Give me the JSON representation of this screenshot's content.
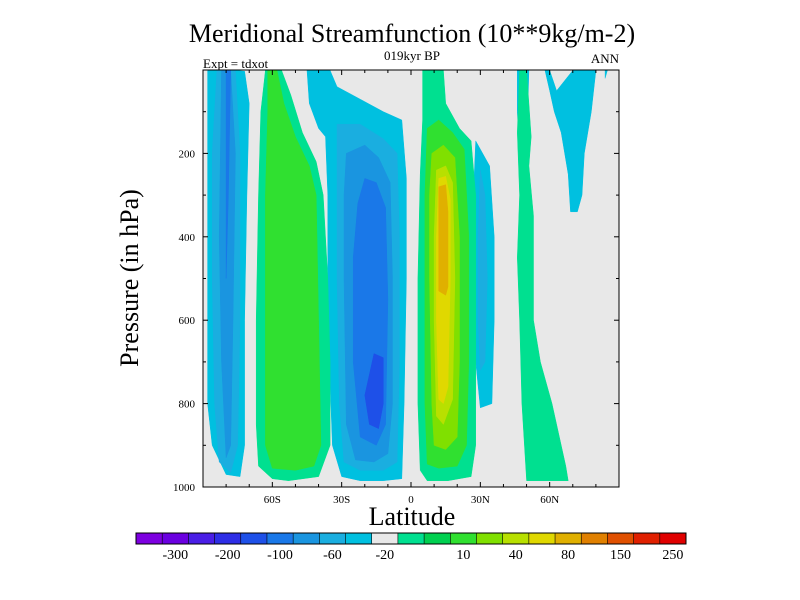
{
  "chart_data": {
    "type": "heatmap",
    "title": "Meridional Streamfunction (10**9kg/m-2)",
    "subtitle_center": "019kyr BP",
    "subtitle_left": "Expt = tdxot",
    "subtitle_right": "ANN",
    "xlabel": "Latitude",
    "ylabel": "Pressure (in hPa)",
    "xlim": [
      -90,
      90
    ],
    "ylim": [
      1000,
      0
    ],
    "y_ticks": [
      200,
      400,
      600,
      800,
      1000
    ],
    "x_ticks": [
      {
        "value": -60,
        "label": "60S"
      },
      {
        "value": -30,
        "label": "30S"
      },
      {
        "value": 0,
        "label": "0"
      },
      {
        "value": 30,
        "label": "30N"
      },
      {
        "value": 60,
        "label": "60N"
      }
    ],
    "colorbar": {
      "colors": [
        "#7d00e0",
        "#6a00e0",
        "#4a1ee6",
        "#2e2ee6",
        "#1e50e8",
        "#1a78e8",
        "#1a95e0",
        "#1aaee0",
        "#00c0e0",
        "#e8e8e8",
        "#00e090",
        "#00d050",
        "#30e030",
        "#80e000",
        "#b8e000",
        "#e0d800",
        "#e0b000",
        "#e08000",
        "#e05000",
        "#e02000",
        "#e00000"
      ],
      "labels": [
        "-300",
        "-200",
        "-100",
        "-60",
        "-20",
        "10",
        "40",
        "80",
        "150",
        "250"
      ]
    },
    "fields": [
      {
        "level": -20,
        "color": "#00c0e0",
        "polys": [
          [
            [
              -88,
              2
            ],
            [
              -84,
              1
            ],
            [
              -76,
              1
            ],
            [
              -72,
              3
            ],
            [
              -70,
              80
            ],
            [
              -71,
              300
            ],
            [
              -72,
              600
            ],
            [
              -72,
              900
            ],
            [
              -74,
              975
            ],
            [
              -80,
              970
            ],
            [
              -86,
              900
            ],
            [
              -88,
              800
            ],
            [
              -88,
              400
            ],
            [
              -88,
              200
            ]
          ],
          [
            [
              -45,
              1
            ],
            [
              -35,
              1
            ],
            [
              -32,
              40
            ],
            [
              -22,
              70
            ],
            [
              -12,
              100
            ],
            [
              -4,
              120
            ],
            [
              -2,
              260
            ],
            [
              -2,
              500
            ],
            [
              -3,
              800
            ],
            [
              -4,
              980
            ],
            [
              -12,
              985
            ],
            [
              -22,
              985
            ],
            [
              -30,
              975
            ],
            [
              -34,
              900
            ],
            [
              -36,
              600
            ],
            [
              -36,
              300
            ],
            [
              -37,
              160
            ],
            [
              -40,
              140
            ],
            [
              -44,
              80
            ]
          ],
          [
            [
              28,
              170
            ],
            [
              34,
              230
            ],
            [
              36,
              400
            ],
            [
              36,
              600
            ],
            [
              35,
              800
            ],
            [
              30,
              810
            ],
            [
              28,
              700
            ],
            [
              27,
              500
            ],
            [
              27,
              300
            ]
          ],
          [
            [
              46,
              1
            ],
            [
              51,
              1
            ],
            [
              50,
              200
            ],
            [
              49,
              250
            ],
            [
              47,
              200
            ],
            [
              46,
              100
            ]
          ],
          [
            [
              58,
              1
            ],
            [
              60,
              1
            ],
            [
              63,
              50
            ],
            [
              70,
              1
            ],
            [
              80,
              1
            ],
            [
              78,
              100
            ],
            [
              75,
              200
            ],
            [
              74,
              300
            ],
            [
              72,
              340
            ],
            [
              69,
              340
            ],
            [
              68,
              250
            ],
            [
              65,
              150
            ],
            [
              62,
              100
            ],
            [
              60,
              50
            ]
          ],
          [
            [
              84,
              1
            ],
            [
              85,
              1
            ],
            [
              84,
              20
            ]
          ]
        ]
      },
      {
        "level": -30,
        "color": "#1aaee0",
        "polys": [
          [
            [
              -84,
              2
            ],
            [
              -76,
              2
            ],
            [
              -74,
              200
            ],
            [
              -74,
              600
            ],
            [
              -75,
              900
            ],
            [
              -78,
              965
            ],
            [
              -83,
              940
            ],
            [
              -85,
              800
            ],
            [
              -86,
              500
            ],
            [
              -86,
              200
            ]
          ],
          [
            [
              -32,
              130
            ],
            [
              -22,
              130
            ],
            [
              -12,
              165
            ],
            [
              -6,
              200
            ],
            [
              -5,
              400
            ],
            [
              -5,
              700
            ],
            [
              -6,
              940
            ],
            [
              -12,
              960
            ],
            [
              -22,
              960
            ],
            [
              -29,
              940
            ],
            [
              -31,
              800
            ],
            [
              -32,
              500
            ],
            [
              -32,
              250
            ]
          ],
          [
            [
              30,
              240
            ],
            [
              32,
              300
            ],
            [
              33,
              500
            ],
            [
              32,
              700
            ],
            [
              30,
              720
            ],
            [
              29,
              600
            ],
            [
              29,
              400
            ]
          ]
        ]
      },
      {
        "level": -40,
        "color": "#1a95e0",
        "polys": [
          [
            [
              -82,
              2
            ],
            [
              -78,
              2
            ],
            [
              -76,
              200
            ],
            [
              -77,
              600
            ],
            [
              -78,
              900
            ],
            [
              -80,
              930
            ],
            [
              -82,
              700
            ],
            [
              -83,
              400
            ]
          ],
          [
            [
              -28,
              200
            ],
            [
              -20,
              180
            ],
            [
              -14,
              210
            ],
            [
              -9,
              270
            ],
            [
              -8,
              500
            ],
            [
              -8,
              800
            ],
            [
              -10,
              920
            ],
            [
              -16,
              940
            ],
            [
              -24,
              935
            ],
            [
              -28,
              850
            ],
            [
              -29,
              500
            ],
            [
              -29,
              300
            ]
          ]
        ]
      },
      {
        "level": -60,
        "color": "#1a78e8",
        "polys": [
          [
            [
              -80,
              2
            ],
            [
              -78,
              2
            ],
            [
              -79,
              300
            ],
            [
              -80,
              500
            ]
          ],
          [
            [
              -20,
              260
            ],
            [
              -15,
              270
            ],
            [
              -11,
              330
            ],
            [
              -10,
              550
            ],
            [
              -11,
              850
            ],
            [
              -15,
              900
            ],
            [
              -22,
              880
            ],
            [
              -25,
              700
            ],
            [
              -25,
              450
            ],
            [
              -23,
              320
            ]
          ]
        ]
      },
      {
        "level": -80,
        "color": "#1e50e8",
        "polys": [
          [
            [
              -16,
              680
            ],
            [
              -12,
              690
            ],
            [
              -12,
              800
            ],
            [
              -14,
              860
            ],
            [
              -18,
              850
            ],
            [
              -20,
              780
            ]
          ]
        ]
      },
      {
        "level": 10,
        "color": "#00e090",
        "polys": [
          [
            [
              -63,
              1
            ],
            [
              -56,
              1
            ],
            [
              -52,
              60
            ],
            [
              -47,
              150
            ],
            [
              -41,
              220
            ],
            [
              -38,
              300
            ],
            [
              -36,
              500
            ],
            [
              -35,
              700
            ],
            [
              -35,
              900
            ],
            [
              -40,
              975
            ],
            [
              -53,
              985
            ],
            [
              -60,
              980
            ],
            [
              -66,
              950
            ],
            [
              -67,
              850
            ],
            [
              -67,
              600
            ],
            [
              -66,
              300
            ],
            [
              -65,
              100
            ]
          ],
          [
            [
              5,
              1
            ],
            [
              14,
              1
            ],
            [
              15,
              80
            ],
            [
              21,
              140
            ],
            [
              26,
              170
            ],
            [
              28,
              300
            ],
            [
              28,
              600
            ],
            [
              28,
              900
            ],
            [
              26,
              975
            ],
            [
              16,
              985
            ],
            [
              7,
              985
            ],
            [
              4,
              960
            ],
            [
              3,
              800
            ],
            [
              3,
              500
            ],
            [
              4,
              250
            ],
            [
              5,
              120
            ]
          ],
          [
            [
              47,
              1
            ],
            [
              50,
              1
            ],
            [
              52,
              160
            ],
            [
              51,
              230
            ],
            [
              53,
              350
            ],
            [
              53,
              600
            ],
            [
              56,
              700
            ],
            [
              61,
              800
            ],
            [
              67,
              950
            ],
            [
              68,
              985
            ],
            [
              50,
              985
            ],
            [
              48,
              800
            ],
            [
              47,
              600
            ],
            [
              46,
              450
            ],
            [
              47,
              300
            ],
            [
              46,
              150
            ]
          ]
        ]
      },
      {
        "level": 30,
        "color": "#30e030",
        "polys": [
          [
            [
              -62,
              1
            ],
            [
              -58,
              1
            ],
            [
              -55,
              80
            ],
            [
              -50,
              160
            ],
            [
              -44,
              230
            ],
            [
              -41,
              300
            ],
            [
              -40,
              600
            ],
            [
              -39,
              900
            ],
            [
              -42,
              950
            ],
            [
              -50,
              960
            ],
            [
              -60,
              955
            ],
            [
              -63,
              900
            ],
            [
              -63,
              600
            ],
            [
              -63,
              300
            ],
            [
              -62,
              100
            ]
          ],
          [
            [
              7,
              140
            ],
            [
              12,
              120
            ],
            [
              18,
              150
            ],
            [
              23,
              190
            ],
            [
              25,
              400
            ],
            [
              25,
              700
            ],
            [
              24,
              900
            ],
            [
              20,
              950
            ],
            [
              12,
              955
            ],
            [
              7,
              945
            ],
            [
              6,
              800
            ],
            [
              6,
              500
            ],
            [
              6,
              300
            ]
          ]
        ]
      },
      {
        "level": 40,
        "color": "#80e000",
        "polys": [
          [
            [
              9,
              200
            ],
            [
              14,
              180
            ],
            [
              19,
              210
            ],
            [
              21,
              400
            ],
            [
              21,
              700
            ],
            [
              20,
              880
            ],
            [
              15,
              910
            ],
            [
              10,
              900
            ],
            [
              9,
              800
            ],
            [
              8,
              500
            ],
            [
              8,
              300
            ]
          ]
        ]
      },
      {
        "level": 60,
        "color": "#b8e000",
        "polys": [
          [
            [
              11,
              240
            ],
            [
              15,
              230
            ],
            [
              18,
              270
            ],
            [
              19,
              500
            ],
            [
              18,
              790
            ],
            [
              14,
              850
            ],
            [
              11,
              830
            ],
            [
              10,
              600
            ],
            [
              10,
              400
            ]
          ]
        ]
      },
      {
        "level": 80,
        "color": "#e0d800",
        "polys": [
          [
            [
              12,
              260
            ],
            [
              15,
              255
            ],
            [
              17,
              310
            ],
            [
              17,
              500
            ],
            [
              16,
              760
            ],
            [
              14,
              800
            ],
            [
              12,
              790
            ],
            [
              11,
              600
            ],
            [
              11,
              400
            ]
          ]
        ]
      },
      {
        "level": 100,
        "color": "#e0b000",
        "polys": [
          [
            [
              12,
              280
            ],
            [
              15,
              275
            ],
            [
              16,
              340
            ],
            [
              16,
              520
            ],
            [
              15,
              540
            ],
            [
              12,
              530
            ],
            [
              12,
              400
            ]
          ]
        ]
      }
    ]
  }
}
